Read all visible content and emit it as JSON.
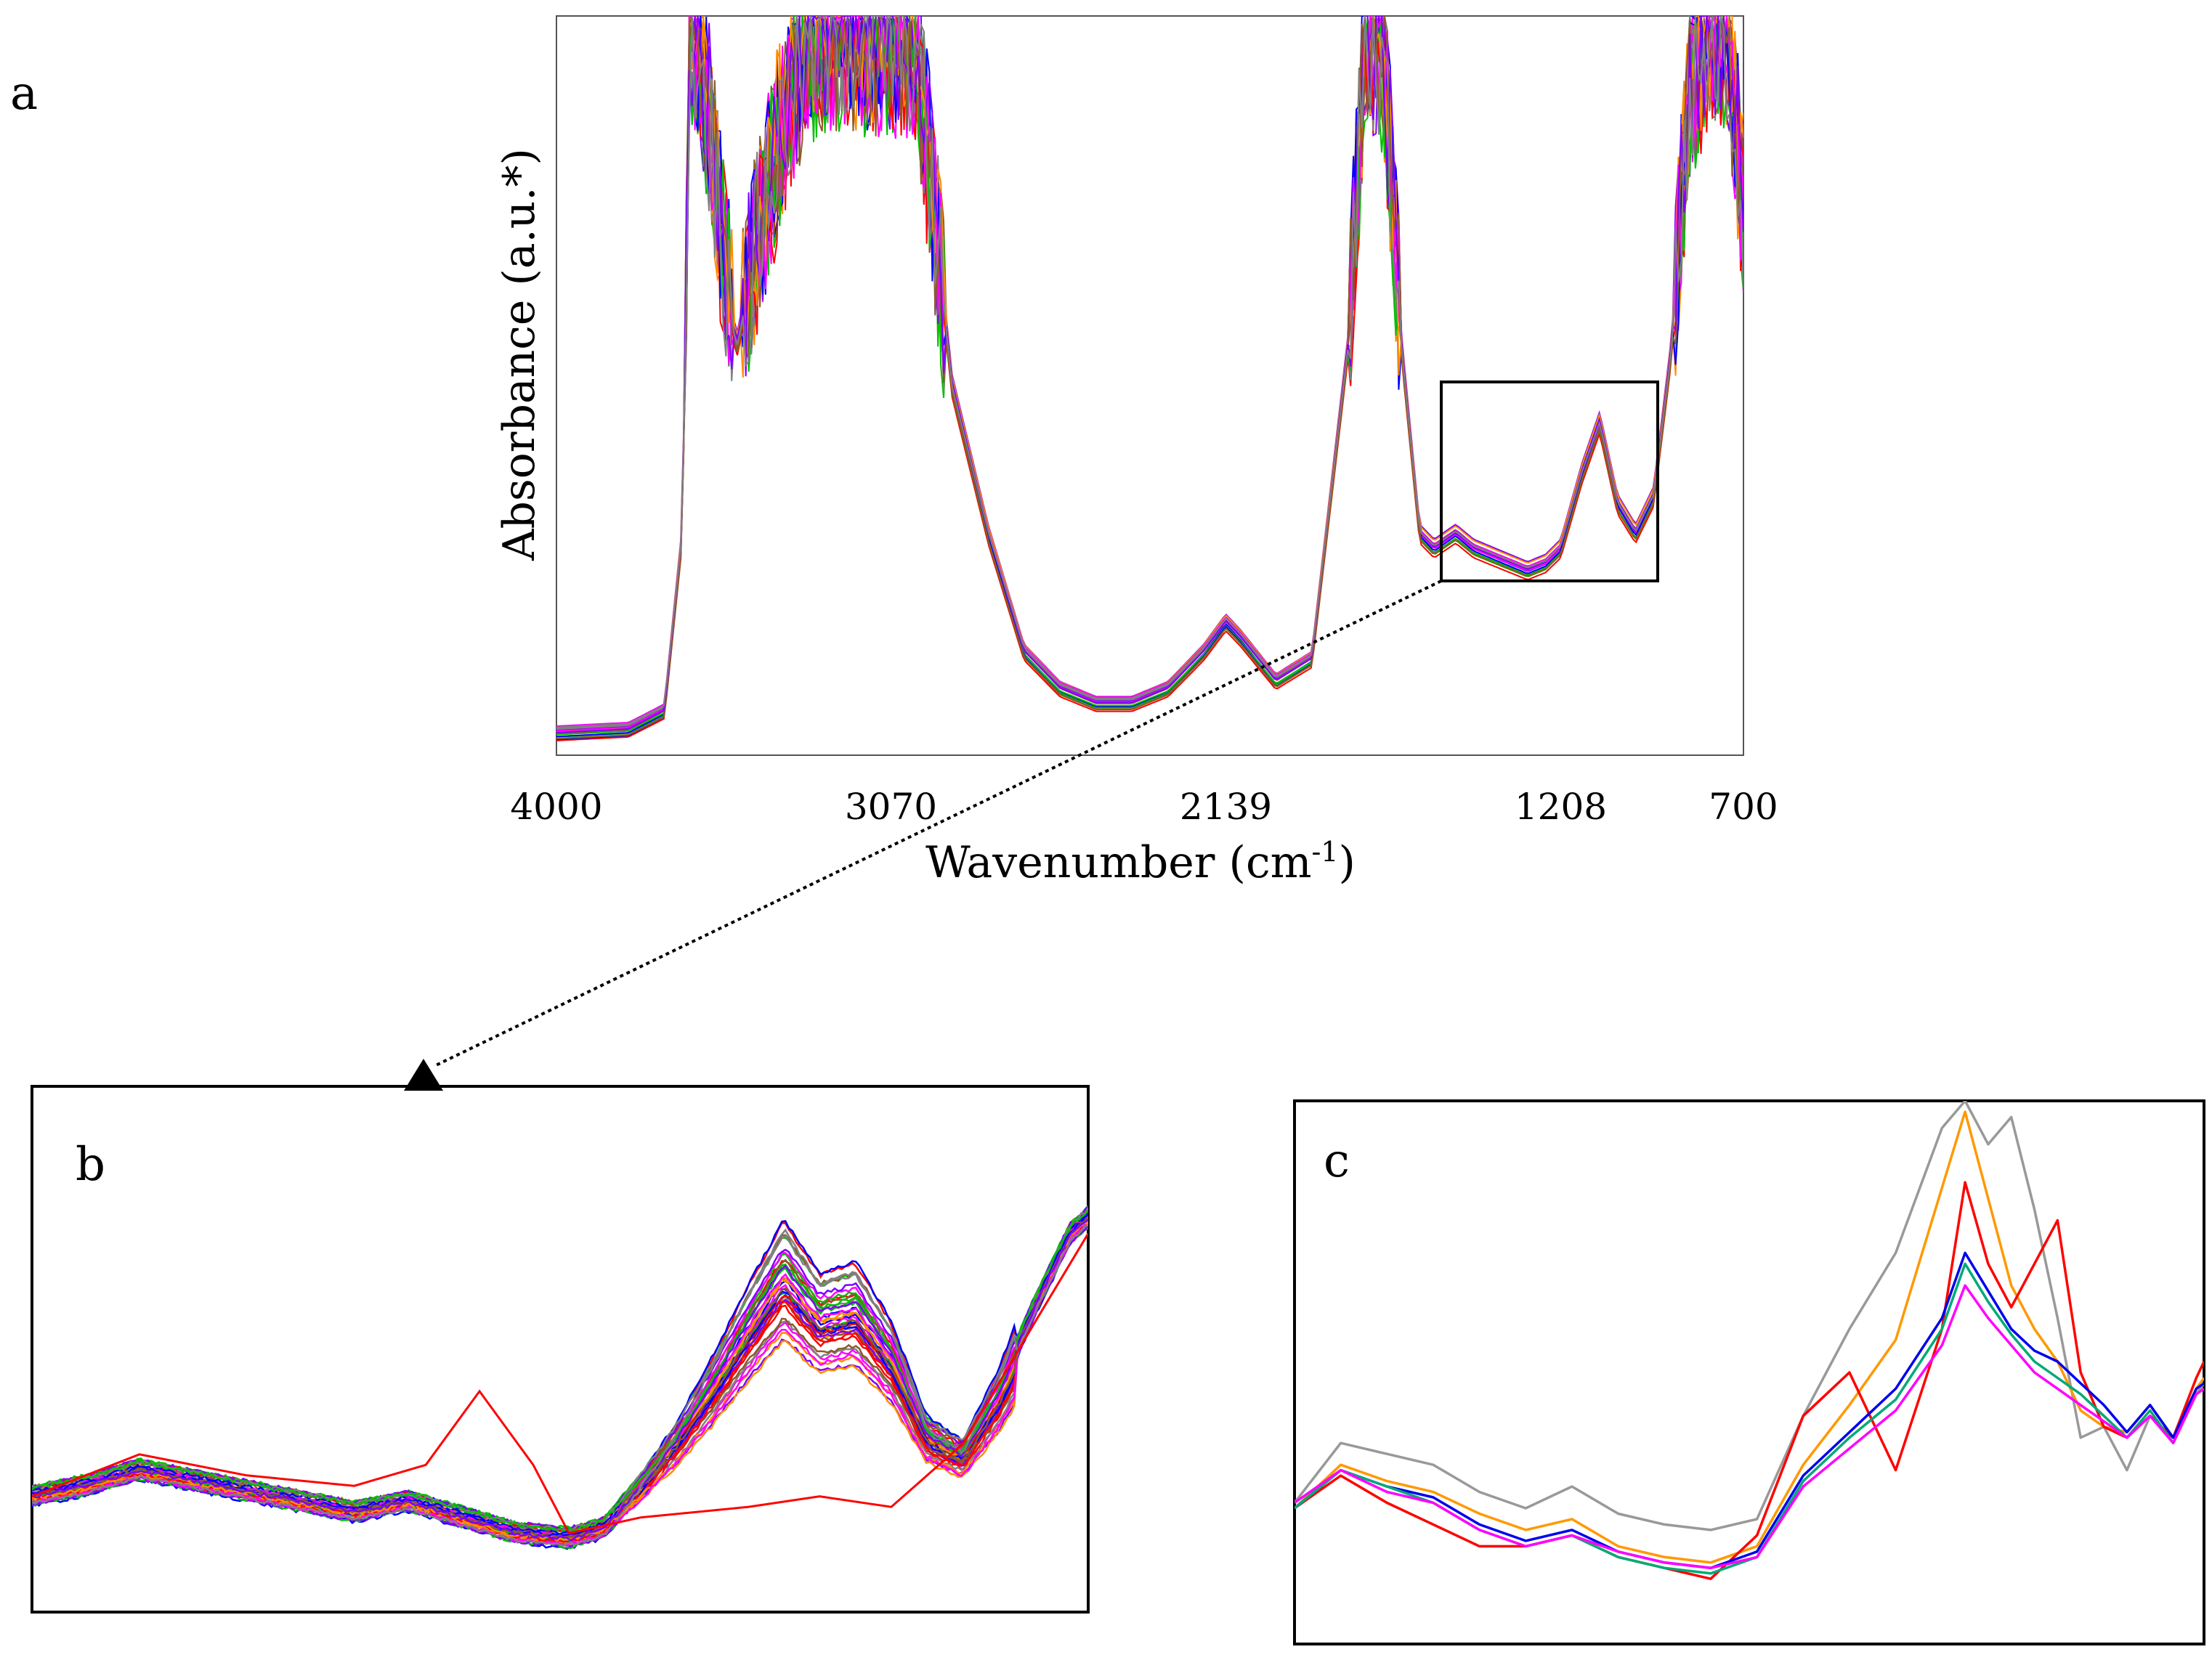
{
  "panels": {
    "a": "a",
    "b": "b",
    "c": "c"
  },
  "chart_data": [
    {
      "panel": "a",
      "type": "line",
      "title": "",
      "xlabel": "Wavenumber (cm-1)",
      "xlabel_parts": {
        "main": "Wavenumber (cm",
        "sup": "-1",
        "close": ")"
      },
      "ylabel": "Absorbance (a.u.*)",
      "xlim": [
        4000,
        700
      ],
      "ylim": [
        0,
        1
      ],
      "xticks": [
        "4000",
        "3070",
        "2139",
        "1208",
        "700"
      ],
      "x_reversed": true,
      "grid": false,
      "legend": "none",
      "note": "Many overlaid FTIR spectra; absorbance in arbitrary units, saturated regions clipped at top",
      "inset_region": {
        "x_from": 1550,
        "x_to": 960
      },
      "series_colors": [
        "#ff0000",
        "#0000ff",
        "#00c000",
        "#ff8c00",
        "#ff00ff",
        "#8b5a2b",
        "#7f00ff",
        "#808080"
      ],
      "representative_spectrum": {
        "x": [
          4000,
          3800,
          3700,
          3650,
          3630,
          3600,
          3500,
          3400,
          3300,
          3200,
          3100,
          3000,
          2900,
          2800,
          2700,
          2600,
          2500,
          2400,
          2300,
          2200,
          2139,
          2100,
          2000,
          1900,
          1800,
          1750,
          1700,
          1650,
          1600,
          1560,
          1500,
          1450,
          1400,
          1350,
          1300,
          1250,
          1208,
          1150,
          1100,
          1050,
          1000,
          950,
          900,
          850,
          800,
          750,
          700
        ],
        "y": [
          0.03,
          0.035,
          0.06,
          0.3,
          0.98,
          0.95,
          0.55,
          0.8,
          0.97,
          0.98,
          0.97,
          0.97,
          0.5,
          0.3,
          0.14,
          0.09,
          0.07,
          0.07,
          0.09,
          0.14,
          0.18,
          0.16,
          0.1,
          0.13,
          0.55,
          0.98,
          0.95,
          0.55,
          0.3,
          0.28,
          0.3,
          0.28,
          0.27,
          0.26,
          0.25,
          0.26,
          0.28,
          0.38,
          0.45,
          0.34,
          0.3,
          0.35,
          0.55,
          0.9,
          0.98,
          0.98,
          0.75
        ]
      }
    },
    {
      "panel": "b",
      "type": "line",
      "title": "",
      "xlabel": "",
      "ylabel": "",
      "xlim": [
        1550,
        960
      ],
      "ylim": [
        0,
        1
      ],
      "x_reversed": true,
      "grid": false,
      "legend": "none",
      "note": "Zoomed view of boxed region in panel a, all spectra overlaid",
      "series_colors": [
        "#ff0000",
        "#0000ff",
        "#00c000",
        "#ff8c00",
        "#ff00ff",
        "#8b5a2b",
        "#7f00ff",
        "#808080"
      ],
      "representative_spectrum": {
        "x": [
          1550,
          1520,
          1490,
          1460,
          1430,
          1400,
          1370,
          1340,
          1310,
          1280,
          1250,
          1230,
          1210,
          1190,
          1170,
          1150,
          1130,
          1110,
          1090,
          1070,
          1050,
          1030,
          1010,
          990,
          970,
          960
        ],
        "y": [
          0.22,
          0.24,
          0.27,
          0.25,
          0.23,
          0.21,
          0.19,
          0.21,
          0.18,
          0.15,
          0.14,
          0.16,
          0.24,
          0.33,
          0.44,
          0.56,
          0.67,
          0.58,
          0.6,
          0.5,
          0.34,
          0.3,
          0.42,
          0.58,
          0.72,
          0.75
        ]
      },
      "outlier_spectrum": {
        "color": "#ff0000",
        "x": [
          1550,
          1490,
          1430,
          1370,
          1330,
          1300,
          1270,
          1250,
          1210,
          1150,
          1110,
          1070,
          1030,
          990,
          960
        ],
        "y": [
          0.22,
          0.3,
          0.26,
          0.24,
          0.28,
          0.42,
          0.28,
          0.15,
          0.18,
          0.2,
          0.22,
          0.2,
          0.32,
          0.55,
          0.72
        ]
      }
    },
    {
      "panel": "c",
      "type": "line",
      "title": "",
      "xlabel": "",
      "ylabel": "",
      "xlim": [
        1550,
        960
      ],
      "ylim": [
        0,
        1
      ],
      "x_reversed": true,
      "grid": false,
      "legend": "none",
      "x": [
        1550,
        1520,
        1490,
        1460,
        1430,
        1400,
        1370,
        1340,
        1310,
        1280,
        1250,
        1220,
        1190,
        1160,
        1130,
        1115,
        1100,
        1085,
        1070,
        1055,
        1040,
        1025,
        1010,
        995,
        980,
        965,
        960
      ],
      "series": [
        {
          "name": "gray",
          "color": "#999999",
          "values": [
            0.26,
            0.37,
            0.35,
            0.33,
            0.28,
            0.25,
            0.29,
            0.24,
            0.22,
            0.21,
            0.23,
            0.42,
            0.58,
            0.72,
            0.95,
            1.0,
            0.92,
            0.97,
            0.8,
            0.6,
            0.38,
            0.4,
            0.32,
            0.42,
            0.38,
            0.46,
            0.48
          ]
        },
        {
          "name": "orange",
          "color": "#ff9900",
          "values": [
            0.25,
            0.33,
            0.3,
            0.28,
            0.24,
            0.21,
            0.23,
            0.18,
            0.16,
            0.15,
            0.18,
            0.33,
            0.44,
            0.56,
            0.84,
            0.98,
            0.82,
            0.66,
            0.58,
            0.52,
            0.43,
            0.4,
            0.39,
            0.44,
            0.38,
            0.47,
            0.49
          ]
        },
        {
          "name": "red",
          "color": "#ff0000",
          "values": [
            0.25,
            0.31,
            0.26,
            0.22,
            0.18,
            0.18,
            0.2,
            0.16,
            0.14,
            0.12,
            0.2,
            0.42,
            0.5,
            0.32,
            0.58,
            0.85,
            0.7,
            0.62,
            0.7,
            0.78,
            0.5,
            0.4,
            0.38,
            0.42,
            0.38,
            0.49,
            0.52
          ]
        },
        {
          "name": "blue",
          "color": "#0000ee",
          "values": [
            0.25,
            0.32,
            0.29,
            0.27,
            0.22,
            0.19,
            0.21,
            0.17,
            0.15,
            0.14,
            0.17,
            0.31,
            0.39,
            0.47,
            0.6,
            0.72,
            0.65,
            0.58,
            0.54,
            0.52,
            0.48,
            0.44,
            0.39,
            0.44,
            0.38,
            0.47,
            0.48
          ]
        },
        {
          "name": "green",
          "color": "#00aa77",
          "values": [
            0.25,
            0.32,
            0.29,
            0.26,
            0.21,
            0.18,
            0.2,
            0.16,
            0.14,
            0.13,
            0.16,
            0.3,
            0.38,
            0.45,
            0.58,
            0.7,
            0.63,
            0.57,
            0.52,
            0.49,
            0.46,
            0.42,
            0.38,
            0.43,
            0.37,
            0.46,
            0.47
          ]
        },
        {
          "name": "magenta",
          "color": "#ff00ff",
          "values": [
            0.26,
            0.32,
            0.28,
            0.26,
            0.21,
            0.18,
            0.2,
            0.17,
            0.15,
            0.14,
            0.16,
            0.29,
            0.36,
            0.43,
            0.55,
            0.66,
            0.6,
            0.55,
            0.5,
            0.47,
            0.44,
            0.41,
            0.38,
            0.42,
            0.37,
            0.46,
            0.47
          ]
        }
      ]
    }
  ]
}
